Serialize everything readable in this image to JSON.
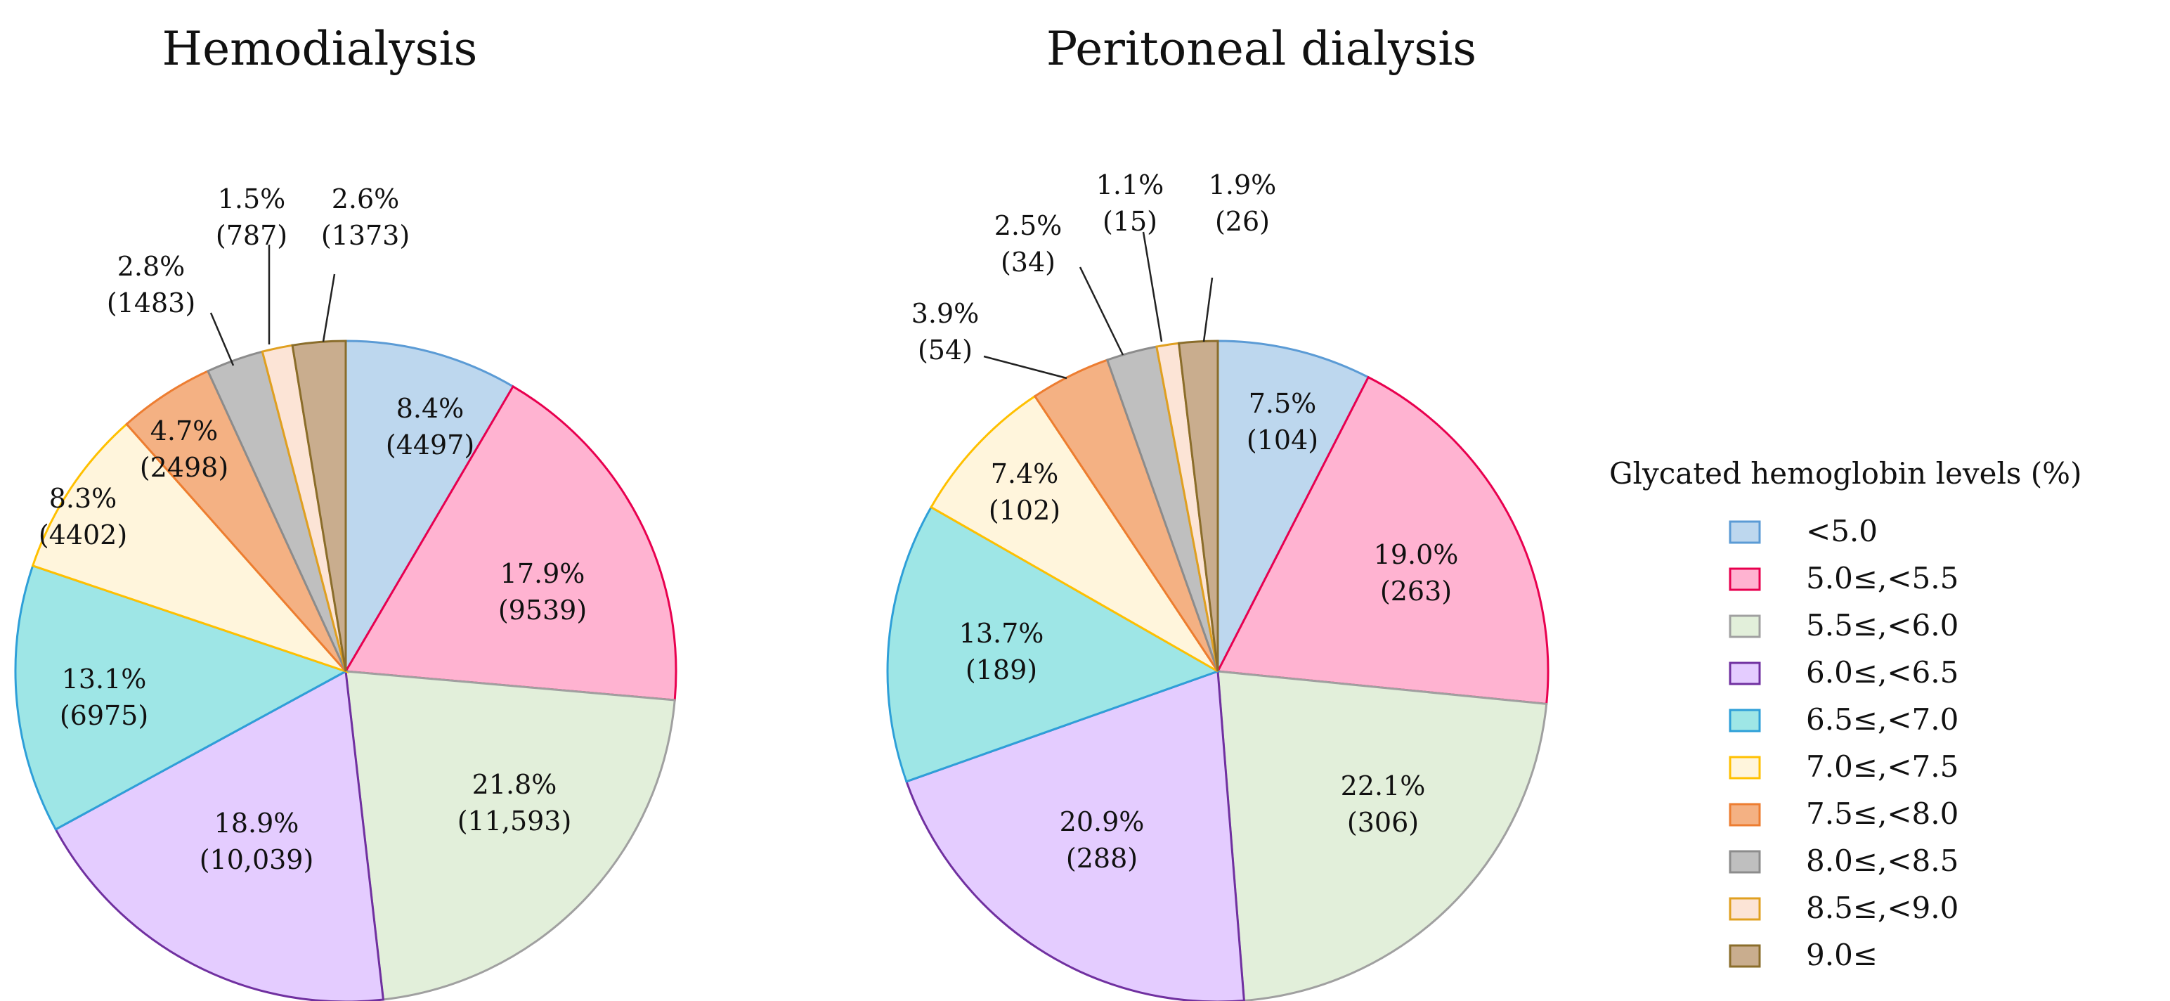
{
  "legend": {
    "title": "Glycated hemoglobin levels (%)",
    "entries": [
      {
        "label": "<5.0",
        "fill": "#bdd7ee",
        "stroke": "#5b9bd5"
      },
      {
        "label": "5.0≤,<5.5",
        "fill": "#ffb3d1",
        "stroke": "#e8004f"
      },
      {
        "label": "5.5≤,<6.0",
        "fill": "#e2efda",
        "stroke": "#a0a0a0"
      },
      {
        "label": "6.0≤,<6.5",
        "fill": "#e4ccff",
        "stroke": "#7030a0"
      },
      {
        "label": "6.5≤,<7.0",
        "fill": "#9ee6e6",
        "stroke": "#2e9fd8"
      },
      {
        "label": "7.0≤,<7.5",
        "fill": "#fff5dc",
        "stroke": "#ffc000"
      },
      {
        "label": "7.5≤,<8.0",
        "fill": "#f4b183",
        "stroke": "#ed7d31"
      },
      {
        "label": "8.0≤,<8.5",
        "fill": "#bfbfbf",
        "stroke": "#8c8c8c"
      },
      {
        "label": "8.5≤,<9.0",
        "fill": "#fce4d6",
        "stroke": "#e0a020"
      },
      {
        "label": "9.0≤",
        "fill": "#c9ad8e",
        "stroke": "#8a6d2b"
      }
    ]
  },
  "chart_data": [
    {
      "type": "pie",
      "title": "Hemodialysis",
      "categories": [
        "<5.0",
        "5.0≤,<5.5",
        "5.5≤,<6.0",
        "6.0≤,<6.5",
        "6.5≤,<7.0",
        "7.0≤,<7.5",
        "7.5≤,<8.0",
        "8.0≤,<8.5",
        "8.5≤,<9.0",
        "9.0≤"
      ],
      "values": [
        4497,
        9539,
        11593,
        10039,
        6975,
        4402,
        2498,
        1483,
        787,
        1373
      ],
      "percents": [
        8.4,
        17.9,
        21.8,
        18.9,
        13.1,
        8.3,
        4.7,
        2.8,
        1.5,
        2.6
      ],
      "labels": [
        {
          "pct": "8.4%",
          "count": "(4497)"
        },
        {
          "pct": "17.9%",
          "count": "(9539)"
        },
        {
          "pct": "21.8%",
          "count": "(11,593)"
        },
        {
          "pct": "18.9%",
          "count": "(10,039)"
        },
        {
          "pct": "13.1%",
          "count": "(6975)"
        },
        {
          "pct": "8.3%",
          "count": "(4402)"
        },
        {
          "pct": "4.7%",
          "count": "(2498)"
        },
        {
          "pct": "2.8%",
          "count": "(1483)"
        },
        {
          "pct": "1.5%",
          "count": "(787)"
        },
        {
          "pct": "2.6%",
          "count": "(1373)"
        }
      ]
    },
    {
      "type": "pie",
      "title": "Peritoneal dialysis",
      "categories": [
        "<5.0",
        "5.0≤,<5.5",
        "5.5≤,<6.0",
        "6.0≤,<6.5",
        "6.5≤,<7.0",
        "7.0≤,<7.5",
        "7.5≤,<8.0",
        "8.0≤,<8.5",
        "8.5≤,<9.0",
        "9.0≤"
      ],
      "values": [
        104,
        263,
        306,
        288,
        189,
        102,
        54,
        34,
        15,
        26
      ],
      "percents": [
        7.5,
        19.0,
        22.1,
        20.9,
        13.7,
        7.4,
        3.9,
        2.5,
        1.1,
        1.9
      ],
      "labels": [
        {
          "pct": "7.5%",
          "count": "(104)"
        },
        {
          "pct": "19.0%",
          "count": "(263)"
        },
        {
          "pct": "22.1%",
          "count": "(306)"
        },
        {
          "pct": "20.9%",
          "count": "(288)"
        },
        {
          "pct": "13.7%",
          "count": "(189)"
        },
        {
          "pct": "7.4%",
          "count": "(102)"
        },
        {
          "pct": "3.9%",
          "count": "(54)"
        },
        {
          "pct": "2.5%",
          "count": "(34)"
        },
        {
          "pct": "1.1%",
          "count": "(15)"
        },
        {
          "pct": "1.9%",
          "count": "(26)"
        }
      ]
    }
  ]
}
